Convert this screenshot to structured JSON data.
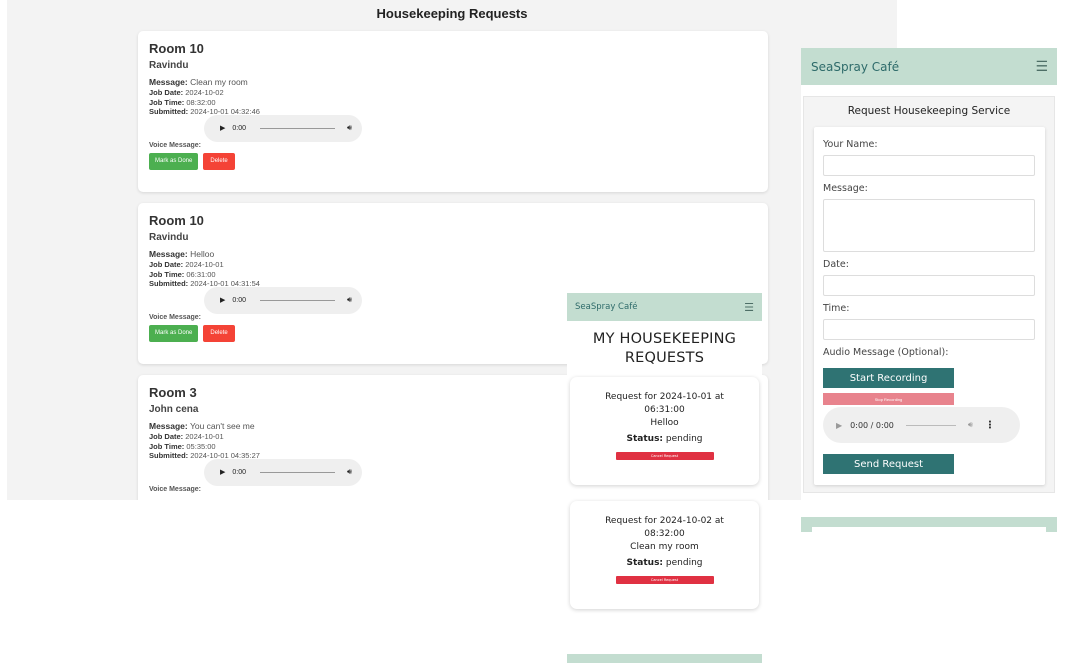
{
  "admin": {
    "title": "Housekeeping Requests",
    "labels": {
      "message": "Message:",
      "job_date": "Job Date:",
      "job_time": "Job Time:",
      "submitted": "Submitted:",
      "voice_message": "Voice Message:",
      "mark_done": "Mark as Done",
      "delete": "Delete"
    },
    "requests": [
      {
        "room": "Room 10",
        "guest": "Ravindu",
        "message": "Clean my room",
        "job_date": "2024-10-02",
        "job_time": "08:32:00",
        "submitted": "2024-10-01 04:32:46",
        "audio_time": "0:00"
      },
      {
        "room": "Room 10",
        "guest": "Ravindu",
        "message": "Helloo",
        "job_date": "2024-10-01",
        "job_time": "06:31:00",
        "submitted": "2024-10-01 04:31:54",
        "audio_time": "0:00"
      },
      {
        "room": "Room 3",
        "guest": "John cena",
        "message": "You can't see me",
        "job_date": "2024-10-01",
        "job_time": "05:35:00",
        "submitted": "2024-10-01 04:35:27",
        "audio_time": "0:00"
      }
    ]
  },
  "mobile": {
    "brand": "SeaSpray Café",
    "title_line1": "MY HOUSEKEEPING",
    "title_line2": "REQUESTS",
    "status_label": "Status:",
    "cancel_label": "Cancel Request",
    "requests": [
      {
        "line1": "Request for 2024-10-01 at",
        "line2": "06:31:00",
        "message": "Helloo",
        "status": "pending"
      },
      {
        "line1": "Request for 2024-10-02 at",
        "line2": "08:32:00",
        "message": "Clean my room",
        "status": "pending"
      }
    ]
  },
  "form": {
    "brand": "SeaSpray Café",
    "heading": "Request Housekeeping Service",
    "name_label": "Your Name:",
    "message_label": "Message:",
    "date_label": "Date:",
    "time_label": "Time:",
    "audio_label": "Audio Message (Optional):",
    "start_recording": "Start Recording",
    "stop_recording": "Stop Recording",
    "audio_time": "0:00 / 0:00",
    "send": "Send Request"
  },
  "icons": {
    "menu": "hamburger-icon",
    "play": "play-icon",
    "volume": "volume-icon",
    "more": "more-options-icon"
  },
  "colors": {
    "mint": "#c3ddd0",
    "teal": "#2f7373",
    "done_green": "#4caf50",
    "delete_red": "#f44336",
    "cancel_red": "#e03142"
  }
}
